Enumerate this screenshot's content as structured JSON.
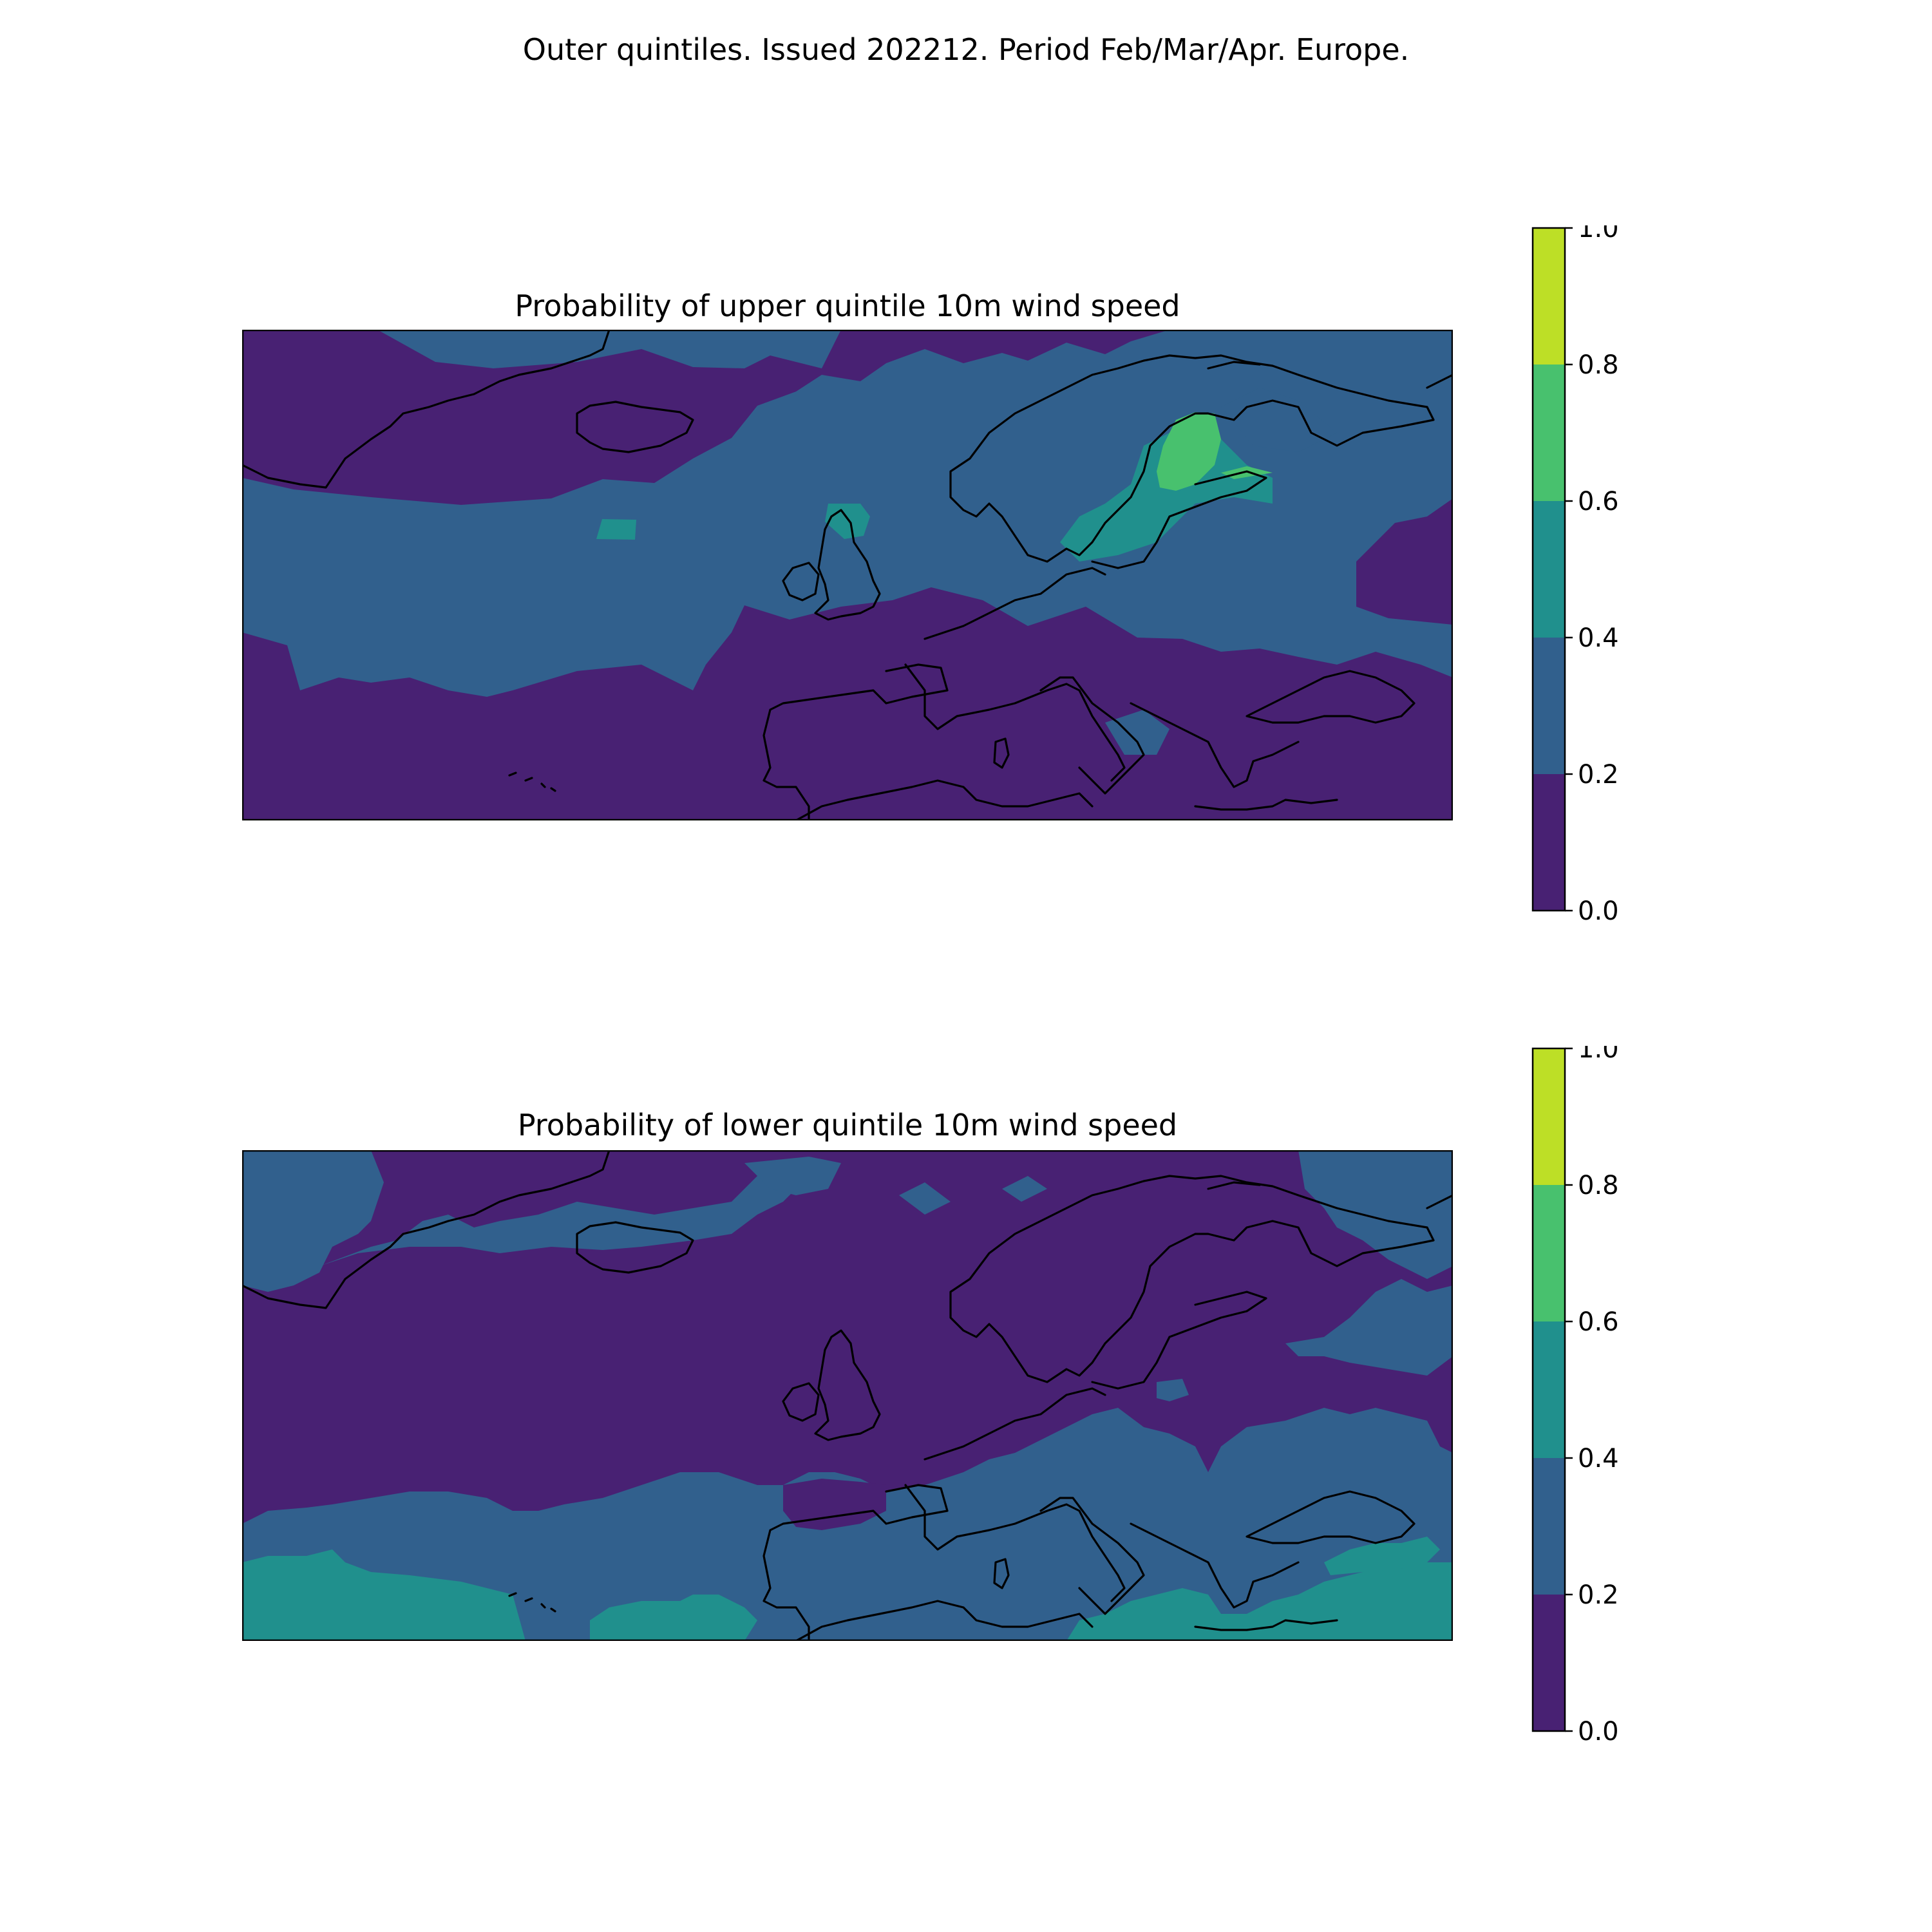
{
  "figure_title": "Outer quintiles. Issued 202212. Period Feb/Mar/Apr. Europe.",
  "colors": {
    "bin_0_0.2": "#482173",
    "bin_0.2_0.4": "#31608d",
    "bin_0.4_0.6": "#20908d",
    "bin_0.6_0.8": "#48c16e",
    "bin_0.8_1.0": "#bddf26",
    "coastline": "#000000"
  },
  "chart_data": [
    {
      "type": "heatmap",
      "title": "Probability of upper quintile 10m wind speed",
      "region": "Europe / North Atlantic",
      "colorbar": {
        "levels": [
          0.0,
          0.2,
          0.4,
          0.6,
          0.8,
          1.0
        ],
        "tick_labels": [
          "0.0",
          "0.2",
          "0.4",
          "0.6",
          "0.8",
          "1.0"
        ]
      },
      "dominant_categories": [
        "0.0–0.2 in far north and subtropical Atlantic / Mediterranean",
        "0.2–0.4 across mid-latitude Atlantic and northern Europe",
        "0.4–0.6 over southern Sweden / Baltic",
        "0.6–0.8 over Gulf of Bothnia / Finland"
      ]
    },
    {
      "type": "heatmap",
      "title": "Probability of lower quintile 10m wind speed",
      "region": "Europe / North Atlantic",
      "colorbar": {
        "levels": [
          0.0,
          0.2,
          0.4,
          0.6,
          0.8,
          1.0
        ],
        "tick_labels": [
          "0.0",
          "0.2",
          "0.4",
          "0.6",
          "0.8",
          "1.0"
        ]
      },
      "dominant_categories": [
        "0.0–0.2 across most of Atlantic and northern Europe",
        "0.2–0.4 near Greenland/Iceland and southern Europe",
        "0.4–0.6 along subtropical Atlantic and eastern Mediterranean"
      ]
    }
  ]
}
